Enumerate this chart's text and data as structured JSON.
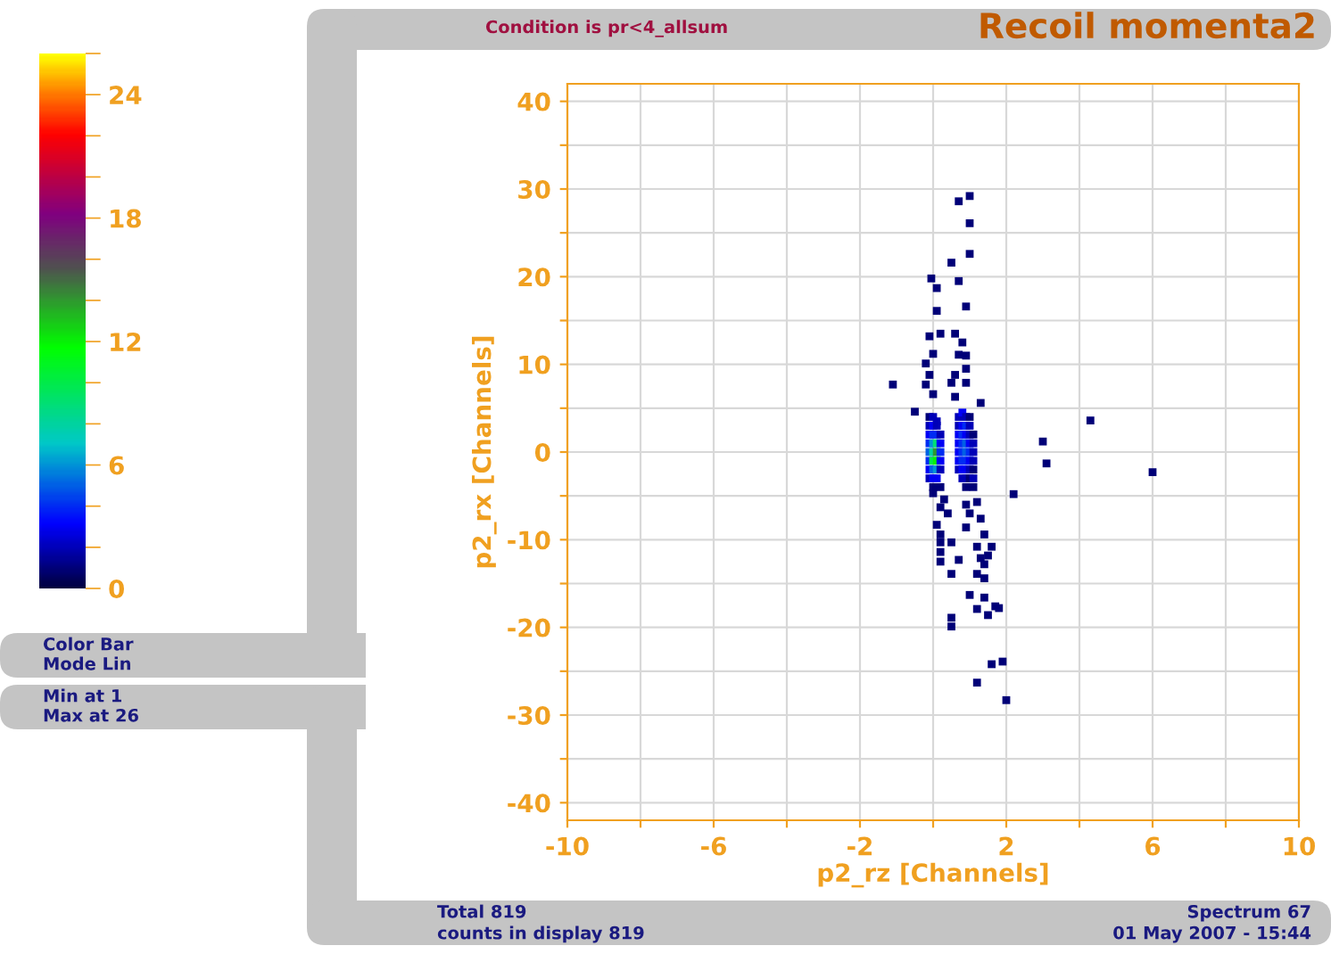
{
  "chart_data": {
    "type": "scatter",
    "title": "Recoil momenta2",
    "subtitle": "Condition is pr<4_allsum",
    "xlabel": "p2_rz [Channels]",
    "ylabel": "p2_rx [Channels]",
    "annotations": [
      "Total 819",
      "counts in display 819",
      "Spectrum 67",
      "01 May 2007 - 15:44",
      "Color Bar",
      "Mode Lin",
      "Min at 1",
      "Max at 26"
    ],
    "xlim": [
      -10,
      10
    ],
    "ylim": [
      -42,
      42
    ],
    "xticks": [
      -10,
      {
        "value": -8,
        "label": null
      },
      -6,
      {
        "value": -4,
        "label": null
      },
      -2,
      {
        "value": 0,
        "label": null
      },
      2,
      {
        "value": 4,
        "label": null
      },
      6,
      {
        "value": 8,
        "label": null
      },
      10
    ],
    "yticks": [
      -40,
      {
        "value": -35,
        "label": null
      },
      -30,
      {
        "value": -25,
        "label": null
      },
      -20,
      {
        "value": -15,
        "label": null
      },
      -10,
      {
        "value": -5,
        "label": null
      },
      0,
      {
        "value": 5,
        "label": null
      },
      10,
      {
        "value": 15,
        "label": null
      },
      20,
      {
        "value": 25,
        "label": null
      },
      30,
      {
        "value": 35,
        "label": null
      },
      40
    ],
    "grid": true,
    "marker": "square",
    "legend": false,
    "clim": [
      0,
      26
    ],
    "cticks": [
      0,
      {
        "value": 2,
        "label": null
      },
      {
        "value": 4,
        "label": null
      },
      6,
      {
        "value": 8,
        "label": null
      },
      {
        "value": 10,
        "label": null
      },
      12,
      {
        "value": 14,
        "label": null
      },
      {
        "value": 16,
        "label": null
      },
      18,
      {
        "value": 20,
        "label": null
      },
      {
        "value": 22,
        "label": null
      },
      24,
      {
        "value": 26,
        "label": null
      }
    ],
    "x": [
      0.7,
      1.0,
      1.0,
      1.0,
      0.5,
      -0.05,
      0.7,
      0.1,
      0.9,
      0.1,
      -0.1,
      0.2,
      0.6,
      0.8,
      0.0,
      0.7,
      0.9,
      -0.2,
      0.9,
      -0.1,
      0.6,
      -1.1,
      -0.2,
      0.5,
      0.9,
      0.0,
      0.6,
      1.3,
      -0.5,
      4.3,
      3.0,
      3.1,
      6.0,
      2.2,
      0.0,
      0.3,
      0.2,
      0.4,
      0.9,
      1.2,
      1.0,
      1.3,
      0.1,
      0.9,
      0.2,
      1.4,
      0.2,
      0.5,
      1.2,
      0.2,
      1.6,
      1.5,
      1.3,
      0.7,
      0.2,
      1.4,
      0.5,
      1.2,
      1.4,
      1.0,
      1.4,
      1.7,
      1.8,
      1.5,
      1.2,
      0.5,
      0.5,
      1.6,
      1.9,
      1.2,
      2.0,
      -0.1,
      0.0,
      0.1,
      -0.1,
      0.0,
      0.1,
      -0.1,
      0.0,
      0.1,
      0.2,
      -0.1,
      0.0,
      0.1,
      0.2,
      -0.1,
      0.0,
      0.1,
      0.2,
      -0.1,
      0.0,
      0.1,
      0.2,
      -0.1,
      0.0,
      0.1,
      0.2,
      -0.1,
      0.0,
      0.1,
      0.0,
      0.2,
      0.7,
      0.8,
      0.9,
      1.0,
      0.7,
      0.8,
      0.9,
      1.0,
      0.7,
      0.8,
      0.9,
      1.0,
      1.1,
      0.7,
      0.8,
      0.9,
      1.0,
      1.1,
      0.7,
      0.8,
      0.9,
      1.0,
      1.1,
      0.7,
      0.8,
      0.9,
      1.0,
      1.1,
      0.7,
      0.8,
      0.9,
      1.0,
      1.1,
      0.8,
      0.9,
      1.0,
      1.1,
      0.9,
      1.1
    ],
    "values": [
      28.6,
      29.2,
      26.1,
      22.6,
      21.6,
      19.8,
      19.5,
      18.7,
      16.6,
      16.1,
      13.2,
      13.5,
      13.5,
      12.5,
      11.2,
      11.1,
      11.0,
      10.1,
      9.5,
      8.8,
      8.8,
      7.7,
      7.7,
      7.9,
      7.9,
      6.6,
      6.3,
      5.6,
      4.6,
      3.6,
      1.2,
      -1.3,
      -2.3,
      -4.8,
      -4.7,
      -5.4,
      -6.3,
      -7.0,
      -6.0,
      -5.7,
      -7.0,
      -7.6,
      -8.3,
      -8.6,
      -9.4,
      -9.4,
      -10.3,
      -10.3,
      -10.8,
      -11.4,
      -10.8,
      -11.8,
      -12.1,
      -12.3,
      -12.5,
      -12.8,
      -13.9,
      -13.9,
      -14.4,
      -16.3,
      -16.6,
      -17.6,
      -17.8,
      -18.6,
      -17.9,
      -18.9,
      -19.9,
      -24.2,
      -23.9,
      -26.3,
      -28.3,
      4,
      4,
      3.5,
      3,
      3,
      3,
      2,
      2,
      2,
      2,
      1,
      1,
      1,
      1,
      0,
      0,
      0,
      0,
      -1,
      -1,
      -1,
      -1,
      -2,
      -2,
      -2,
      -2,
      -3,
      -3,
      -3,
      -4,
      -4,
      4,
      4.5,
      4,
      4,
      3,
      3,
      3,
      3,
      2,
      2,
      2,
      2,
      2,
      1,
      1,
      1,
      1,
      1,
      0,
      0,
      0,
      0,
      0,
      -1,
      -1,
      -1,
      -1,
      -1,
      -2,
      -2,
      -2,
      -2,
      -2,
      -3,
      -3,
      -3,
      -3,
      -4,
      -4
    ],
    "cvalues": [
      1,
      1,
      1,
      1,
      1,
      1,
      1,
      1,
      1,
      1,
      1,
      1,
      1,
      1,
      1,
      1,
      1,
      1,
      1,
      1,
      1,
      1,
      1,
      1,
      1,
      1,
      1,
      1,
      1,
      1,
      1,
      1,
      1,
      1,
      1,
      1,
      1,
      1,
      1,
      1,
      1,
      1,
      1,
      1,
      1,
      1,
      1,
      1,
      1,
      1,
      1,
      1,
      1,
      1,
      1,
      1,
      1,
      1,
      1,
      1,
      1,
      1,
      1,
      1,
      1,
      1,
      1,
      1,
      1,
      1,
      1,
      1,
      2,
      2,
      2,
      3,
      2,
      3,
      4,
      4,
      2,
      4,
      6,
      9,
      3,
      5,
      8,
      14,
      4,
      4,
      10,
      12,
      3,
      3,
      5,
      6,
      2,
      2,
      3,
      3,
      1,
      1,
      2,
      3,
      2,
      1,
      2,
      3,
      4,
      2,
      3,
      4,
      3,
      2,
      1,
      3,
      4,
      5,
      3,
      2,
      3,
      4,
      5,
      4,
      2,
      3,
      4,
      4,
      3,
      2,
      2,
      3,
      3,
      2,
      1,
      2,
      2,
      1,
      2,
      1,
      1
    ]
  }
}
